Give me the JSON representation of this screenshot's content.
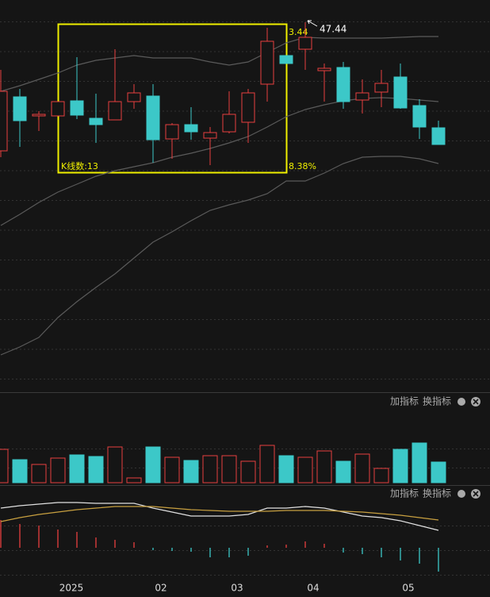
{
  "chart_data": [
    {
      "type": "candlestick",
      "up_color": "#e8403f",
      "down_color": "#3cc8c8",
      "ylim": [
        24.19,
        48.84
      ],
      "open": [
        39.34,
        42.74,
        41.54,
        41.54,
        42.49,
        41.39,
        41.29,
        42.44,
        42.79,
        40.09,
        40.99,
        40.14,
        40.54,
        41.14,
        43.54,
        45.34,
        45.74,
        44.39,
        44.59,
        42.54,
        43.04,
        43.99,
        42.19,
        40.79
      ],
      "close": [
        43.09,
        41.24,
        41.64,
        42.44,
        41.59,
        40.99,
        42.44,
        42.99,
        40.04,
        40.99,
        40.54,
        40.49,
        41.64,
        42.99,
        46.24,
        44.84,
        46.49,
        44.54,
        42.44,
        42.99,
        43.59,
        42.04,
        40.84,
        39.74
      ],
      "high": [
        44.44,
        43.24,
        41.84,
        42.44,
        45.24,
        42.94,
        45.74,
        43.54,
        43.54,
        41.09,
        42.09,
        40.84,
        43.09,
        43.24,
        47.09,
        45.34,
        47.44,
        44.84,
        44.94,
        43.84,
        44.44,
        44.84,
        42.59,
        41.24
      ],
      "low": [
        38.94,
        39.59,
        40.59,
        41.54,
        41.34,
        39.84,
        41.29,
        41.99,
        38.59,
        38.84,
        40.04,
        38.44,
        40.44,
        39.84,
        42.44,
        44.84,
        44.44,
        42.44,
        41.99,
        41.69,
        42.09,
        41.99,
        40.09,
        39.74
      ],
      "series": [
        {
          "color": "#5a5a5a",
          "values": [
            43.09,
            43.44,
            43.84,
            44.24,
            44.74,
            45.04,
            45.19,
            45.34,
            45.19,
            45.19,
            45.19,
            44.94,
            44.74,
            44.94,
            45.54,
            46.14,
            46.49,
            46.44,
            46.44,
            46.44,
            46.44,
            46.49,
            46.54,
            46.54
          ]
        },
        {
          "color": "#5a5a5a",
          "values": [
            34.64,
            35.34,
            36.09,
            36.74,
            37.24,
            37.74,
            38.09,
            38.34,
            38.59,
            38.94,
            39.19,
            39.49,
            39.84,
            40.24,
            40.84,
            41.49,
            41.94,
            42.24,
            42.49,
            42.64,
            42.69,
            42.64,
            42.54,
            42.44
          ]
        },
        {
          "color": "#5a5a5a",
          "values": [
            26.49,
            26.99,
            27.59,
            28.84,
            29.84,
            30.74,
            31.59,
            32.59,
            33.59,
            34.24,
            34.94,
            35.59,
            35.94,
            36.24,
            36.64,
            37.44,
            37.44,
            37.94,
            38.54,
            38.94,
            38.99,
            38.99,
            38.84,
            38.54
          ]
        }
      ],
      "annotations": [
        "47.44",
        "3.44",
        "8.38%",
        "K线数:13"
      ]
    },
    {
      "type": "bar",
      "ylim": [
        0,
        96
      ],
      "toolbar": [
        "加指标",
        "换指标"
      ],
      "values": [
        42,
        29,
        23,
        31,
        35,
        33,
        45,
        6,
        45,
        32,
        28,
        34,
        34,
        27,
        47,
        34,
        32,
        40,
        27,
        36,
        18,
        42,
        50,
        26
      ]
    },
    {
      "type": "bar",
      "ylim": [
        -62,
        62
      ],
      "toolbar": [
        "加指标",
        "换指标"
      ],
      "up_color": "#e8403f",
      "down_color": "#3cc8c8",
      "values": [
        35,
        30,
        28,
        23,
        20,
        13,
        10,
        7,
        -3,
        -4,
        -5,
        -12,
        -12,
        -10,
        3,
        4,
        8,
        5,
        -6,
        -8,
        -12,
        -16,
        -20,
        -30
      ],
      "series": [
        {
          "color": "#e0e0e0",
          "values": [
            50,
            53,
            55,
            57,
            57,
            56,
            56,
            56,
            50,
            45,
            40,
            40,
            40,
            42,
            50,
            50,
            52,
            50,
            45,
            40,
            38,
            34,
            28,
            22
          ]
        },
        {
          "color": "#c8a040",
          "values": [
            33,
            38,
            42,
            45,
            48,
            50,
            52,
            52,
            52,
            50,
            48,
            47,
            46,
            46,
            46,
            47,
            47,
            47,
            46,
            45,
            43,
            41,
            38,
            35
          ]
        }
      ],
      "x_labels": [
        "2025",
        "02",
        "03",
        "04",
        "05"
      ]
    }
  ]
}
